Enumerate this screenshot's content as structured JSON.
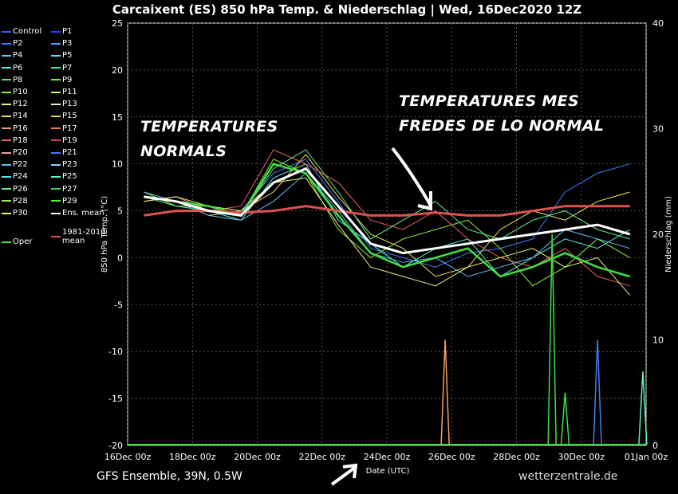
{
  "title": "Carcaixent  (ES)  850 hPa Temp. & Niederschlag | Wed, 16Dec2020 12Z",
  "footer": "GFS Ensemble, 39N, 0.5W",
  "watermark": "wetterzentrale.de",
  "annotations": {
    "normal": [
      "TEMPERATURES",
      "NORMALS"
    ],
    "cold": [
      "TEMPERATURES  MES",
      "FREDES DE LO NORMAL"
    ]
  },
  "legend": [
    {
      "label": "Control",
      "color": "#3060ff"
    },
    {
      "label": "P1",
      "color": "#2a40ff"
    },
    {
      "label": "P2",
      "color": "#3d7cff"
    },
    {
      "label": "P3",
      "color": "#4aa0ff"
    },
    {
      "label": "P4",
      "color": "#5ec8ff"
    },
    {
      "label": "P5",
      "color": "#62e0ff"
    },
    {
      "label": "P6",
      "color": "#58f0e0"
    },
    {
      "label": "P7",
      "color": "#40f0b0"
    },
    {
      "label": "P8",
      "color": "#40e880"
    },
    {
      "label": "P9",
      "color": "#60f060"
    },
    {
      "label": "P10",
      "color": "#8cf040"
    },
    {
      "label": "P11",
      "color": "#d8f060"
    },
    {
      "label": "P12",
      "color": "#f0f0a0"
    },
    {
      "label": "P13",
      "color": "#f0f0c8"
    },
    {
      "label": "P14",
      "color": "#f0e060"
    },
    {
      "label": "P15",
      "color": "#f0c040"
    },
    {
      "label": "P16",
      "color": "#f0a060"
    },
    {
      "label": "P17",
      "color": "#f08050"
    },
    {
      "label": "P18",
      "color": "#f06060"
    },
    {
      "label": "P19",
      "color": "#e04040"
    },
    {
      "label": "P20",
      "color": "#f0a0a0"
    },
    {
      "label": "P21",
      "color": "#4080f0"
    },
    {
      "label": "P22",
      "color": "#60c0f0"
    },
    {
      "label": "P23",
      "color": "#80d0ff"
    },
    {
      "label": "P24",
      "color": "#60e0f0"
    },
    {
      "label": "P25",
      "color": "#60f0d0"
    },
    {
      "label": "P26",
      "color": "#60f090"
    },
    {
      "label": "P27",
      "color": "#40d060"
    },
    {
      "label": "P28",
      "color": "#a0f060"
    },
    {
      "label": "P29",
      "color": "#60f040"
    },
    {
      "label": "P30",
      "color": "#f0f080"
    },
    {
      "label": "Ens. mean",
      "color": "#ffffff"
    },
    {
      "label": "1981-2010 mean",
      "color": "#e05050"
    },
    {
      "label": "Oper",
      "color": "#40e040"
    }
  ],
  "chart_data": {
    "type": "line",
    "xlabel": "Date (UTC)",
    "ylabel_left": "850 hPa Temp. (°C)",
    "ylabel_right": "Niederschlag (mm)",
    "ylim_left": [
      -20,
      25
    ],
    "ylim_right": [
      0,
      40
    ],
    "x_ticks": [
      "16Dec 00z",
      "18Dec 00z",
      "20Dec 00z",
      "22Dec 00z",
      "24Dec 00z",
      "26Dec 00z",
      "28Dec 00z",
      "30Dec 00z",
      "01Jan 00z"
    ],
    "y_ticks_left": [
      25,
      20,
      15,
      10,
      5,
      0,
      -5,
      -10,
      -15,
      -20
    ],
    "y_ticks_right": [
      40,
      30,
      20,
      10,
      0
    ],
    "grid": true,
    "x_days": [
      0.5,
      1.5,
      2.5,
      3.5,
      4.5,
      5.5,
      6.5,
      7.5,
      8.5,
      9.5,
      10.5,
      11.5,
      12.5,
      13.5,
      14.5,
      15.5
    ],
    "ens_mean": [
      6.5,
      6.0,
      5.0,
      4.5,
      8.0,
      9.5,
      5.5,
      1.5,
      0.5,
      1.0,
      1.5,
      2.0,
      2.5,
      3.0,
      3.5,
      2.5
    ],
    "climatology_mean": [
      4.5,
      5.0,
      5.0,
      4.8,
      5.0,
      5.5,
      5.0,
      4.5,
      4.5,
      4.8,
      4.5,
      4.5,
      5.0,
      5.5,
      5.5,
      5.5
    ],
    "members_temperature": [
      [
        6.5,
        6.0,
        5.5,
        5.0,
        9.0,
        10.5,
        6.0,
        1.0,
        0.0,
        -1.0,
        0.5,
        1.0,
        2.0,
        7.0,
        9.0,
        10.0
      ],
      [
        6.0,
        6.5,
        5.0,
        4.0,
        8.5,
        10.0,
        4.0,
        1.5,
        -1.0,
        1.0,
        2.0,
        -2.0,
        0.0,
        2.0,
        1.0,
        3.0
      ],
      [
        7.0,
        5.5,
        5.5,
        4.5,
        10.5,
        9.0,
        3.0,
        0.0,
        2.0,
        3.0,
        4.0,
        1.0,
        -3.0,
        -1.0,
        2.0,
        0.0
      ],
      [
        6.5,
        6.0,
        4.5,
        5.0,
        7.0,
        11.0,
        6.5,
        2.5,
        1.0,
        -2.0,
        -1.0,
        3.0,
        5.0,
        4.0,
        6.0,
        7.0
      ],
      [
        6.0,
        6.5,
        5.0,
        5.5,
        11.5,
        10.0,
        8.0,
        4.0,
        3.0,
        5.0,
        2.0,
        0.0,
        -1.0,
        1.0,
        -2.0,
        -3.0
      ],
      [
        7.0,
        6.0,
        4.5,
        4.0,
        6.0,
        9.0,
        5.0,
        0.5,
        -0.5,
        0.0,
        -2.0,
        -1.0,
        0.0,
        3.0,
        2.0,
        1.0
      ],
      [
        6.5,
        5.5,
        5.0,
        4.5,
        9.5,
        11.5,
        7.0,
        2.0,
        4.0,
        6.0,
        3.0,
        2.0,
        4.0,
        5.0,
        3.0,
        2.0
      ],
      [
        6.0,
        6.5,
        5.5,
        5.0,
        8.0,
        8.5,
        3.5,
        -1.0,
        -2.0,
        -3.0,
        -1.0,
        0.0,
        1.0,
        -1.0,
        0.0,
        -4.0
      ]
    ],
    "oper_temperature": [
      6.5,
      6.0,
      5.5,
      4.5,
      10.0,
      9.0,
      4.5,
      0.5,
      -1.0,
      0.0,
      1.0,
      -2.0,
      -1.0,
      0.5,
      -1.0,
      -2.0
    ],
    "precip_spikes_mm": [
      {
        "day": 9.8,
        "value": 10,
        "color": "#f0a060"
      },
      {
        "day": 13.1,
        "value": 20,
        "color": "#40e040"
      },
      {
        "day": 13.5,
        "value": 5,
        "color": "#40e040"
      },
      {
        "day": 14.5,
        "value": 10,
        "color": "#4080f0"
      },
      {
        "day": 15.9,
        "value": 7,
        "color": "#60f0d0"
      }
    ]
  }
}
